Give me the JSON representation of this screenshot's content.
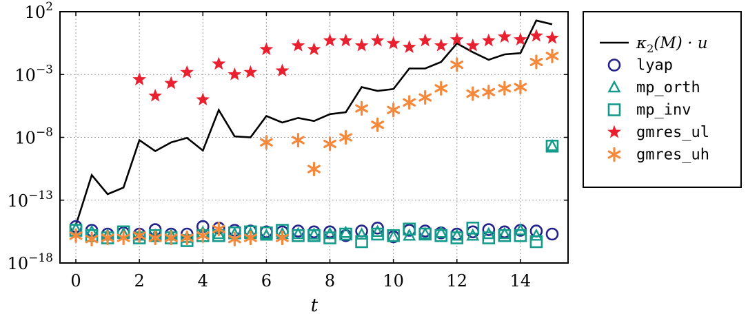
{
  "chart_data": {
    "type": "scatter",
    "xlabel": "t",
    "ylabel": "",
    "yscale": "log",
    "xlim": [
      -0.5,
      15.5
    ],
    "ylim": [
      1e-18,
      100
    ],
    "grid": true,
    "legend_position": "outside-right",
    "x_ticks": [
      0,
      2,
      4,
      6,
      8,
      10,
      12,
      14
    ],
    "x_tick_labels": [
      "0",
      "2",
      "4",
      "6",
      "8",
      "10",
      "12",
      "14"
    ],
    "y_ticks": [
      {
        "value": 100,
        "base": "10",
        "exp": "2"
      },
      {
        "value": 0.001,
        "base": "10",
        "exp": "−3"
      },
      {
        "value": 1e-08,
        "base": "10",
        "exp": "−8"
      },
      {
        "value": 1e-13,
        "base": "10",
        "exp": "−13"
      },
      {
        "value": 1e-18,
        "base": "10",
        "exp": "−18"
      }
    ],
    "series": [
      {
        "name": "κ2(M)·u",
        "legend": {
          "kappa": "κ",
          "sub": "2",
          "rest": "(M) · u"
        },
        "style": "line",
        "color": "#000000",
        "x": [
          0,
          0.5,
          1,
          1.5,
          2,
          2.5,
          3,
          3.5,
          4,
          4.5,
          5,
          5.5,
          6,
          6.5,
          7,
          7.5,
          8,
          8.5,
          9,
          9.5,
          10,
          10.5,
          11,
          11.5,
          12,
          12.5,
          13,
          13.5,
          14,
          14.5,
          15
        ],
        "y": [
          1e-15,
          1e-11,
          3e-13,
          1e-12,
          6e-09,
          8e-10,
          4e-09,
          9e-09,
          9e-10,
          1.5e-06,
          1.2e-08,
          1e-08,
          5e-07,
          1.5e-07,
          3.5e-07,
          2e-07,
          7e-07,
          1e-06,
          0.0001,
          5e-05,
          7e-05,
          0.003,
          0.003,
          0.01,
          0.3,
          0.06,
          0.015,
          0.04,
          0.05,
          20,
          10
        ]
      },
      {
        "name": "lyap",
        "style": "marker",
        "marker": "circle",
        "color": "#22228a",
        "x": [
          0,
          0.5,
          1,
          1.5,
          2,
          2.5,
          3,
          3.5,
          4,
          4.5,
          5,
          5.5,
          6,
          6.5,
          7,
          7.5,
          8,
          8.5,
          9,
          9.5,
          10,
          10.5,
          11,
          11.5,
          12,
          12.5,
          13,
          13.5,
          14,
          14.5,
          15
        ],
        "y": [
          8e-16,
          4e-16,
          2e-16,
          2.5e-16,
          2e-16,
          4.5e-16,
          2e-16,
          2e-16,
          8e-16,
          6e-16,
          4e-16,
          3.5e-16,
          3e-16,
          3e-16,
          3.5e-16,
          3e-16,
          3e-16,
          1.5e-16,
          3.5e-16,
          6e-16,
          1.2e-16,
          4e-16,
          3.5e-16,
          2.5e-16,
          2e-16,
          3e-16,
          4.5e-16,
          3e-16,
          4e-16,
          3.5e-16,
          2e-16
        ]
      },
      {
        "name": "mp_orth",
        "style": "marker",
        "marker": "triangle",
        "color": "#139a8a",
        "x": [
          0,
          0.5,
          1,
          1.5,
          2,
          2.5,
          3,
          3.5,
          4,
          4.5,
          5,
          5.5,
          6,
          6.5,
          7,
          7.5,
          8,
          8.5,
          9,
          9.5,
          10,
          10.5,
          11,
          11.5,
          12,
          12.5,
          13,
          13.5,
          14,
          14.5,
          15
        ],
        "y": [
          5e-16,
          3e-16,
          1.5e-16,
          2e-16,
          1.5e-16,
          1.5e-16,
          1.5e-16,
          1e-16,
          2.5e-16,
          2e-16,
          2e-16,
          2e-16,
          1.5e-16,
          2e-16,
          2e-16,
          1.8e-16,
          2e-16,
          2.5e-16,
          1.8e-16,
          3e-16,
          1.2e-16,
          1.5e-16,
          2e-16,
          2.5e-16,
          1.5e-16,
          1.5e-16,
          2e-16,
          2e-16,
          4e-16,
          1.5e-16,
          2e-09
        ]
      },
      {
        "name": "mp_inv",
        "style": "marker",
        "marker": "square",
        "color": "#139a8a",
        "x": [
          0,
          0.5,
          1,
          1.5,
          2,
          2.5,
          3,
          3.5,
          4,
          4.5,
          5,
          5.5,
          6,
          6.5,
          7,
          7.5,
          8,
          8.5,
          9,
          9.5,
          10,
          10.5,
          11,
          11.5,
          12,
          12.5,
          13,
          13.5,
          14,
          14.5,
          15
        ],
        "y": [
          4e-16,
          1.5e-16,
          1e-16,
          3e-16,
          1e-16,
          1.5e-16,
          1e-16,
          6e-17,
          1.5e-16,
          1.5e-16,
          2.5e-16,
          3e-16,
          2.5e-16,
          4e-16,
          1.5e-16,
          1.5e-16,
          1e-16,
          2e-16,
          5e-17,
          2e-16,
          1.5e-16,
          5e-16,
          2e-16,
          1.5e-16,
          1e-16,
          6e-16,
          1e-16,
          1.5e-16,
          1.5e-16,
          5e-17,
          2e-09
        ]
      },
      {
        "name": "gmres_ul",
        "style": "marker",
        "marker": "star",
        "color": "#e8202f",
        "x": [
          2,
          2.5,
          3,
          3.5,
          4,
          4.5,
          5,
          5.5,
          6,
          6.5,
          7,
          7.5,
          8,
          8.5,
          9,
          9.5,
          10,
          10.5,
          11,
          11.5,
          12,
          12.5,
          13,
          13.5,
          14,
          14.5,
          15
        ],
        "y": [
          0.0004,
          2e-05,
          0.0002,
          0.0015,
          1e-05,
          0.007,
          0.001,
          0.0015,
          0.1,
          0.002,
          0.2,
          0.1,
          0.5,
          0.5,
          0.2,
          0.5,
          0.3,
          0.15,
          0.5,
          0.2,
          0.6,
          0.2,
          0.5,
          1,
          0.6,
          1.2,
          0.8
        ]
      },
      {
        "name": "gmres_uh",
        "style": "marker",
        "marker": "asterisk",
        "color": "#f5883a",
        "x": [
          0,
          0.5,
          1,
          1.5,
          2,
          2.5,
          3,
          3.5,
          4,
          4.5,
          5,
          5.5,
          6,
          6.5,
          7,
          7.5,
          8,
          8.5,
          9,
          9.5,
          10,
          10.5,
          11,
          11.5,
          12,
          12.5,
          13,
          13.5,
          14,
          14.5,
          15
        ],
        "y": [
          1.5e-16,
          8e-17,
          1e-16,
          1e-16,
          1.5e-16,
          1e-16,
          1e-16,
          1e-16,
          1.5e-16,
          5e-16,
          8e-17,
          1e-16,
          4e-09,
          1e-16,
          6e-09,
          3e-11,
          3e-09,
          1e-08,
          2e-06,
          1e-07,
          1.5e-06,
          6e-06,
          1.5e-05,
          8e-05,
          0.006,
          3e-05,
          4e-05,
          8e-05,
          0.0001,
          0.01,
          0.03
        ]
      }
    ]
  }
}
